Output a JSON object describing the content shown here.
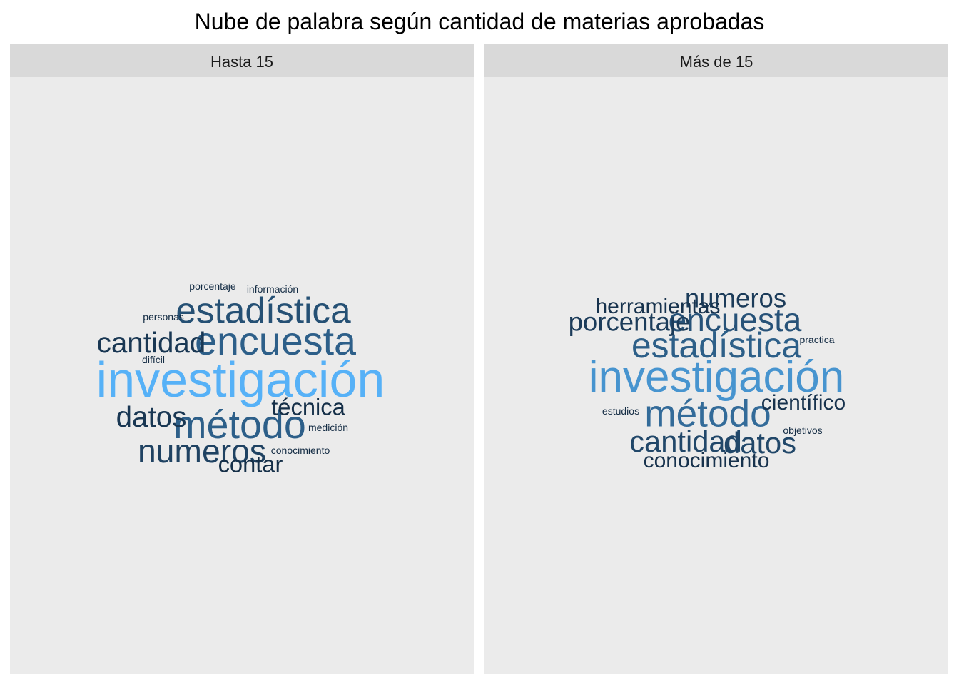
{
  "title": "Nube de palabra según cantidad de materias aprobadas",
  "chart_data": {
    "type": "wordcloud",
    "title": "Nube de palabra según cantidad de materias aprobadas",
    "colors": {
      "strip_bg": "#d9d9d9",
      "panel_bg": "#ebebeb",
      "low": "#132b43",
      "high": "#56b1f7"
    },
    "facets": [
      {
        "label": "Hasta 15",
        "words": [
          {
            "text": "investigación",
            "weight": 10
          },
          {
            "text": "método",
            "weight": 6
          },
          {
            "text": "encuesta",
            "weight": 6
          },
          {
            "text": "estadística",
            "weight": 5
          },
          {
            "text": "numeros",
            "weight": 4
          },
          {
            "text": "cantidad",
            "weight": 3
          },
          {
            "text": "datos",
            "weight": 3
          },
          {
            "text": "contar",
            "weight": 2
          },
          {
            "text": "técnica",
            "weight": 2
          },
          {
            "text": "conocimiento",
            "weight": 1
          },
          {
            "text": "medición",
            "weight": 1
          },
          {
            "text": "difícil",
            "weight": 1
          },
          {
            "text": "personas",
            "weight": 1
          },
          {
            "text": "porcentaje",
            "weight": 1
          },
          {
            "text": "información",
            "weight": 1
          }
        ]
      },
      {
        "label": "Más de 15",
        "words": [
          {
            "text": "investigación",
            "weight": 10
          },
          {
            "text": "método",
            "weight": 7
          },
          {
            "text": "estadística",
            "weight": 6
          },
          {
            "text": "encuesta",
            "weight": 5
          },
          {
            "text": "datos",
            "weight": 4
          },
          {
            "text": "cantidad",
            "weight": 4
          },
          {
            "text": "porcentaje",
            "weight": 3
          },
          {
            "text": "numeros",
            "weight": 3
          },
          {
            "text": "científico",
            "weight": 2
          },
          {
            "text": "herramientas",
            "weight": 2
          },
          {
            "text": "conocimiento",
            "weight": 2
          },
          {
            "text": "estudios",
            "weight": 1
          },
          {
            "text": "practica",
            "weight": 1
          },
          {
            "text": "objetivos",
            "weight": 1
          }
        ]
      }
    ]
  }
}
